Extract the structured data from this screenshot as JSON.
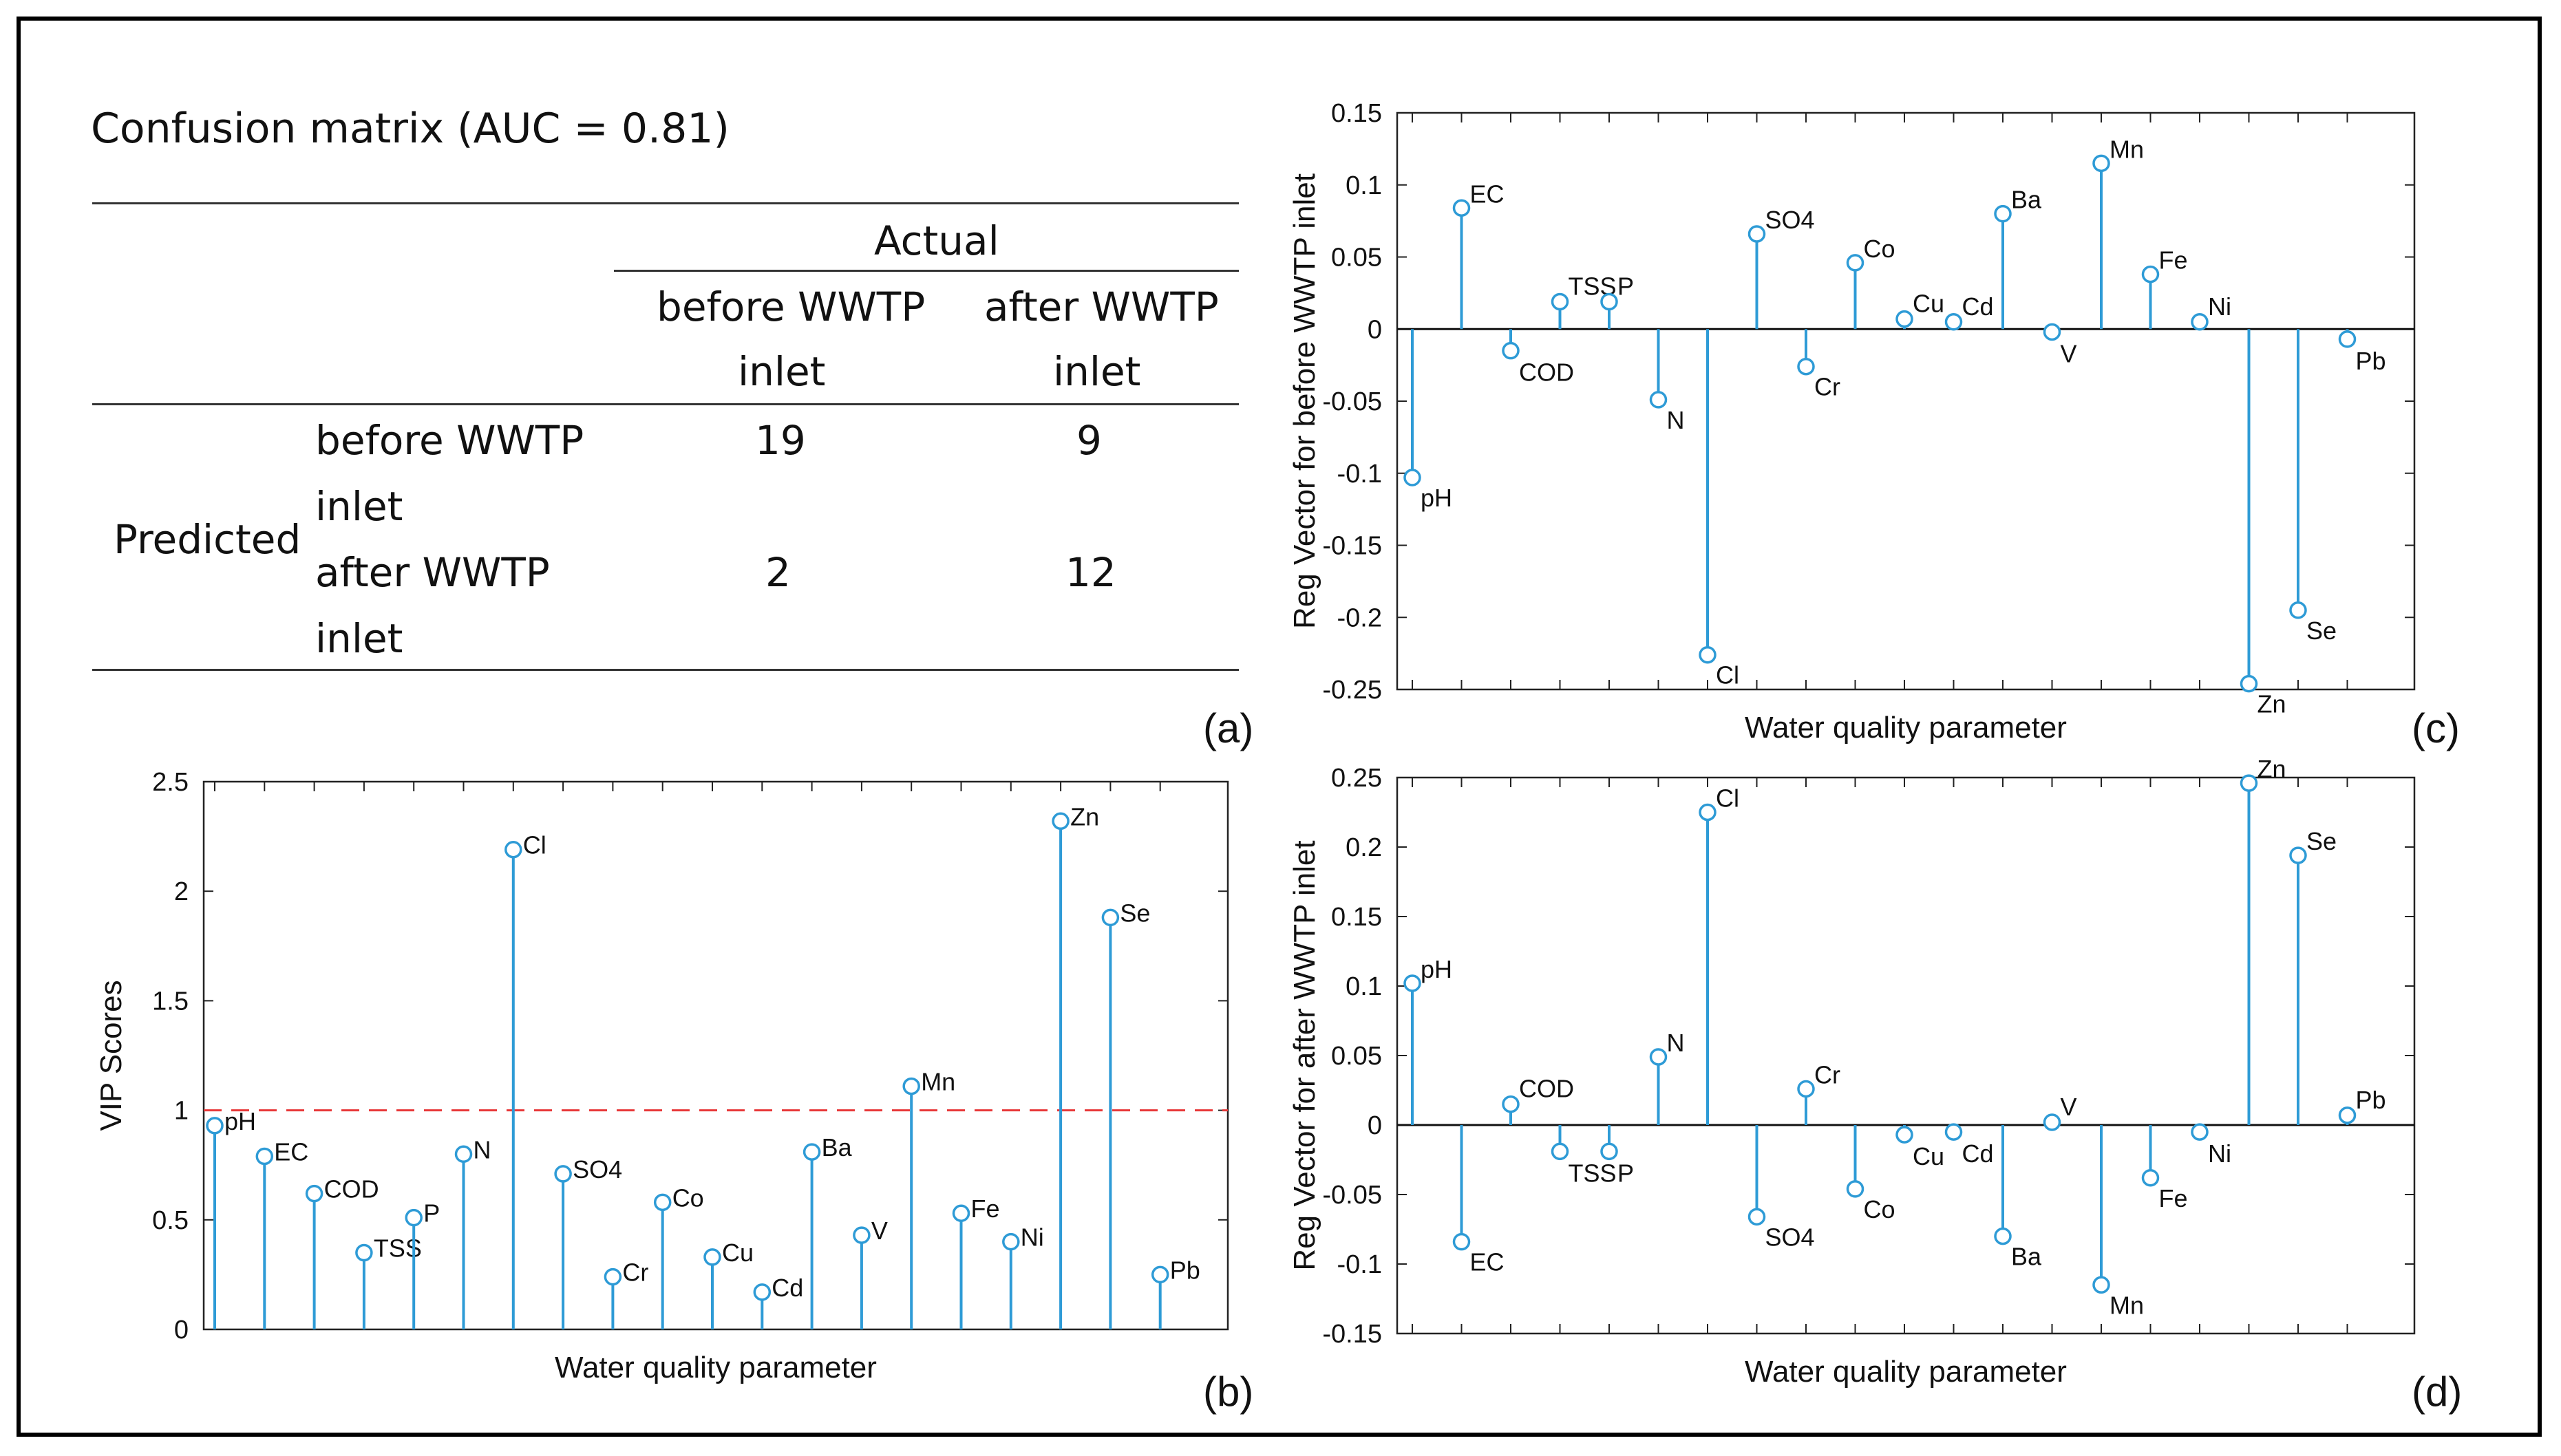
{
  "confusion_matrix": {
    "title": "Confusion matrix (AUC = 0.81)",
    "actual_label": "Actual",
    "predicted_label": "Predicted",
    "col_headers": [
      [
        "before WWTP",
        "inlet"
      ],
      [
        "after WWTP",
        "inlet"
      ]
    ],
    "row_headers": [
      [
        "before WWTP",
        "inlet"
      ],
      [
        "after WWTP",
        "inlet"
      ]
    ],
    "cells": [
      [
        "19",
        "9"
      ],
      [
        "2",
        "12"
      ]
    ],
    "panel_label": "(a)"
  },
  "chart_data": [
    {
      "id": "b",
      "type": "stem",
      "panel_label": "(b)",
      "ylabel": "VIP Scores",
      "xlabel": "Water quality parameter",
      "ylim": [
        0,
        2.5
      ],
      "yticks": [
        "0",
        "0.5",
        "1",
        "1.5",
        "2",
        "2.5"
      ],
      "threshold": 1,
      "categories": [
        "pH",
        "EC",
        "COD",
        "TSS",
        "P",
        "N",
        "Cl",
        "SO4",
        "Cr",
        "Co",
        "Cu",
        "Cd",
        "Ba",
        "V",
        "Mn",
        "Fe",
        "Ni",
        "Zn",
        "Se",
        "Pb"
      ],
      "values": [
        0.93,
        0.79,
        0.62,
        0.35,
        0.51,
        0.8,
        2.19,
        0.71,
        0.24,
        0.58,
        0.33,
        0.17,
        0.81,
        0.43,
        1.11,
        0.53,
        0.4,
        2.32,
        1.88,
        0.25
      ],
      "color": "#2e9bd6",
      "threshold_color": "#e8393a"
    },
    {
      "id": "c",
      "type": "stem",
      "panel_label": "(c)",
      "ylabel": "Reg Vector for before WWTP inlet",
      "xlabel": "Water quality parameter",
      "ylim": [
        -0.25,
        0.15
      ],
      "yticks": [
        "-0.25",
        "-0.2",
        "-0.15",
        "-0.1",
        "-0.05",
        "0",
        "0.05",
        "0.1",
        "0.15"
      ],
      "categories": [
        "pH",
        "EC",
        "COD",
        "TSS",
        "P",
        "N",
        "Cl",
        "SO4",
        "Cr",
        "Co",
        "Cu",
        "Cd",
        "Ba",
        "V",
        "Mn",
        "Fe",
        "Ni",
        "Zn",
        "Se",
        "Pb"
      ],
      "values": [
        -0.103,
        0.084,
        -0.015,
        0.019,
        0.019,
        -0.049,
        -0.226,
        0.066,
        -0.026,
        0.046,
        0.007,
        0.005,
        0.08,
        -0.002,
        0.115,
        0.038,
        0.005,
        -0.246,
        -0.195,
        -0.007
      ],
      "color": "#2e9bd6"
    },
    {
      "id": "d",
      "type": "stem",
      "panel_label": "(d)",
      "ylabel": "Reg Vector for after WWTP inlet",
      "xlabel": "Water quality parameter",
      "ylim": [
        -0.15,
        0.25
      ],
      "yticks": [
        "-0.15",
        "-0.1",
        "-0.05",
        "0",
        "0.05",
        "0.1",
        "0.15",
        "0.2",
        "0.25"
      ],
      "categories": [
        "pH",
        "EC",
        "COD",
        "TSS",
        "P",
        "N",
        "Cl",
        "SO4",
        "Cr",
        "Co",
        "Cu",
        "Cd",
        "Ba",
        "V",
        "Mn",
        "Fe",
        "Ni",
        "Zn",
        "Se",
        "Pb"
      ],
      "values": [
        0.102,
        -0.084,
        0.015,
        -0.019,
        -0.019,
        0.049,
        0.225,
        -0.066,
        0.026,
        -0.046,
        -0.007,
        -0.005,
        -0.08,
        0.002,
        -0.115,
        -0.038,
        -0.005,
        0.246,
        0.194,
        0.007
      ],
      "color": "#2e9bd6"
    }
  ]
}
